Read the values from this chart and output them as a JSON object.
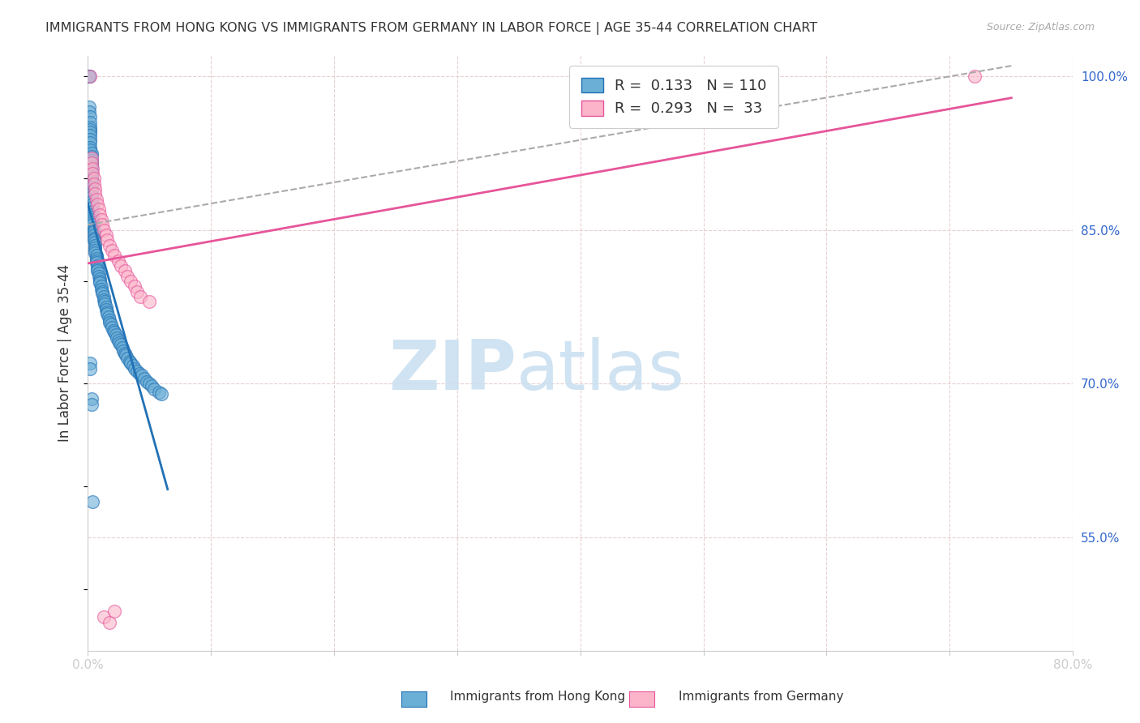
{
  "title": "IMMIGRANTS FROM HONG KONG VS IMMIGRANTS FROM GERMANY IN LABOR FORCE | AGE 35-44 CORRELATION CHART",
  "source": "Source: ZipAtlas.com",
  "ylabel": "In Labor Force | Age 35-44",
  "xlim": [
    0.0,
    0.8
  ],
  "ylim": [
    0.44,
    1.02
  ],
  "xticks": [
    0.0,
    0.1,
    0.2,
    0.3,
    0.4,
    0.5,
    0.6,
    0.7,
    0.8
  ],
  "xticklabels": [
    "0.0%",
    "",
    "",
    "",
    "",
    "",
    "",
    "",
    "80.0%"
  ],
  "yticks": [
    0.55,
    0.7,
    0.85,
    1.0
  ],
  "yticklabels": [
    "55.0%",
    "70.0%",
    "85.0%",
    "100.0%"
  ],
  "hk_x": [
    0.001,
    0.001,
    0.001,
    0.001,
    0.001,
    0.002,
    0.002,
    0.002,
    0.002,
    0.002,
    0.002,
    0.002,
    0.002,
    0.002,
    0.002,
    0.003,
    0.003,
    0.003,
    0.003,
    0.003,
    0.003,
    0.003,
    0.003,
    0.003,
    0.003,
    0.003,
    0.003,
    0.003,
    0.003,
    0.003,
    0.004,
    0.004,
    0.004,
    0.004,
    0.004,
    0.004,
    0.004,
    0.004,
    0.004,
    0.005,
    0.005,
    0.005,
    0.005,
    0.005,
    0.005,
    0.006,
    0.006,
    0.006,
    0.006,
    0.006,
    0.007,
    0.007,
    0.007,
    0.007,
    0.008,
    0.008,
    0.008,
    0.009,
    0.009,
    0.01,
    0.01,
    0.01,
    0.011,
    0.011,
    0.012,
    0.012,
    0.013,
    0.013,
    0.014,
    0.014,
    0.015,
    0.015,
    0.016,
    0.016,
    0.017,
    0.018,
    0.018,
    0.019,
    0.02,
    0.021,
    0.022,
    0.023,
    0.024,
    0.025,
    0.026,
    0.027,
    0.028,
    0.029,
    0.03,
    0.031,
    0.032,
    0.034,
    0.035,
    0.037,
    0.038,
    0.04,
    0.042,
    0.044,
    0.046,
    0.048,
    0.05,
    0.052,
    0.054,
    0.058,
    0.06,
    0.002,
    0.002,
    0.003,
    0.003,
    0.004
  ],
  "hk_y": [
    1.0,
    1.0,
    1.0,
    0.97,
    0.965,
    0.96,
    0.955,
    0.95,
    0.948,
    0.945,
    0.942,
    0.938,
    0.935,
    0.93,
    0.928,
    0.925,
    0.922,
    0.918,
    0.915,
    0.912,
    0.908,
    0.905,
    0.902,
    0.9,
    0.898,
    0.895,
    0.892,
    0.888,
    0.885,
    0.882,
    0.878,
    0.875,
    0.872,
    0.868,
    0.865,
    0.862,
    0.86,
    0.858,
    0.855,
    0.852,
    0.85,
    0.848,
    0.845,
    0.842,
    0.84,
    0.838,
    0.835,
    0.832,
    0.83,
    0.828,
    0.825,
    0.822,
    0.82,
    0.818,
    0.815,
    0.812,
    0.81,
    0.808,
    0.805,
    0.802,
    0.8,
    0.798,
    0.795,
    0.792,
    0.79,
    0.788,
    0.785,
    0.782,
    0.78,
    0.778,
    0.775,
    0.772,
    0.77,
    0.768,
    0.765,
    0.762,
    0.76,
    0.758,
    0.755,
    0.752,
    0.75,
    0.748,
    0.745,
    0.742,
    0.74,
    0.738,
    0.735,
    0.732,
    0.73,
    0.728,
    0.725,
    0.722,
    0.72,
    0.718,
    0.715,
    0.712,
    0.71,
    0.708,
    0.705,
    0.702,
    0.7,
    0.698,
    0.695,
    0.692,
    0.69,
    0.72,
    0.715,
    0.685,
    0.68,
    0.585
  ],
  "de_x": [
    0.002,
    0.003,
    0.003,
    0.004,
    0.004,
    0.005,
    0.005,
    0.006,
    0.006,
    0.007,
    0.008,
    0.009,
    0.01,
    0.011,
    0.012,
    0.013,
    0.015,
    0.016,
    0.018,
    0.02,
    0.022,
    0.025,
    0.027,
    0.03,
    0.032,
    0.035,
    0.038,
    0.04,
    0.043,
    0.05,
    0.013,
    0.018,
    0.022,
    0.72
  ],
  "de_y": [
    1.0,
    0.92,
    0.915,
    0.91,
    0.905,
    0.9,
    0.895,
    0.89,
    0.885,
    0.88,
    0.875,
    0.87,
    0.865,
    0.86,
    0.855,
    0.85,
    0.845,
    0.84,
    0.835,
    0.83,
    0.825,
    0.82,
    0.815,
    0.81,
    0.805,
    0.8,
    0.795,
    0.79,
    0.785,
    0.78,
    0.473,
    0.467,
    0.478,
    1.0
  ],
  "hk_color": "#6baed6",
  "hk_edge_color": "#2171b5",
  "de_color": "#fbb4c9",
  "de_edge_color": "#e6559a",
  "trend_hk_color": "#2171b5",
  "trend_de_color": "#e6559a",
  "trend_overall_color": "#aaaaaa",
  "grid_color": "#e8d0d0",
  "background_color": "#ffffff",
  "watermark_zip": "ZIP",
  "watermark_atlas": "atlas",
  "watermark_color_zip": "#c8dff0",
  "watermark_color_atlas": "#c8dff0"
}
